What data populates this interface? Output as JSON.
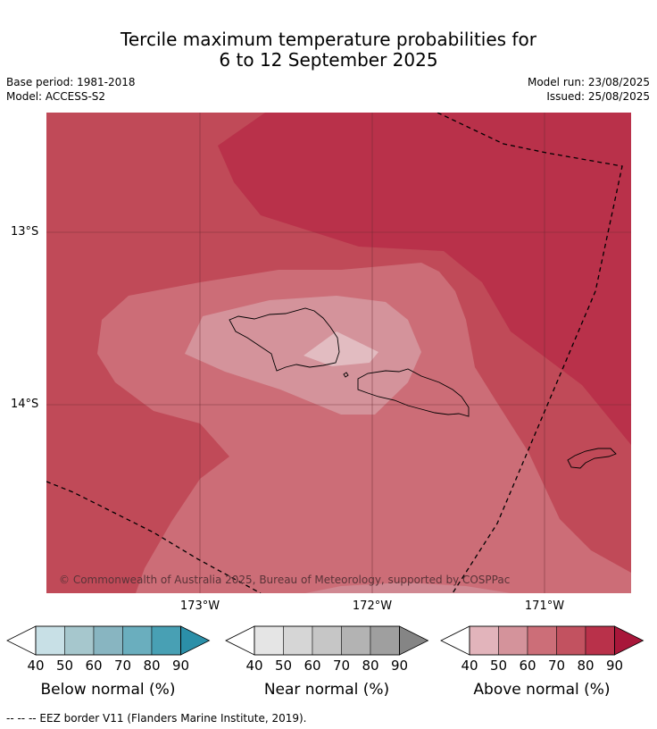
{
  "title": {
    "line1": "Tercile maximum temperature probabilities for",
    "line2": "6 to 12 September 2025"
  },
  "meta": {
    "base_period": "Base period: 1981-2018",
    "model": "Model: ACCESS-S2",
    "model_run": "Model run: 23/08/2025",
    "issued": "Issued: 25/08/2025"
  },
  "map": {
    "lat_labels": [
      "13°S",
      "14°S"
    ],
    "lon_labels": [
      "173°W",
      "172°W",
      "171°W"
    ],
    "copyright": "© Commonwealth of Australia 2025, Bureau of Meteorology, supported by COSPPac"
  },
  "colorbars": {
    "below": {
      "title": "Below normal (%)",
      "ticks": [
        "40",
        "50",
        "60",
        "70",
        "80",
        "90"
      ],
      "colors": [
        "#c8e0e6",
        "#a6c7cd",
        "#88b5c1",
        "#6aaebe",
        "#48a0b4",
        "#2b8fa8"
      ]
    },
    "near": {
      "title": "Near normal (%)",
      "ticks": [
        "40",
        "50",
        "60",
        "70",
        "80",
        "90"
      ],
      "colors": [
        "#e5e5e5",
        "#d6d6d6",
        "#c6c6c6",
        "#b3b3b3",
        "#9f9f9f",
        "#858585"
      ]
    },
    "above": {
      "title": "Above normal (%)",
      "ticks": [
        "40",
        "50",
        "60",
        "70",
        "80",
        "90"
      ],
      "colors": [
        "#e2b4bb",
        "#d4939b",
        "#cc6e78",
        "#c25260",
        "#b9314a",
        "#a8173a"
      ]
    }
  },
  "footnote": "--  --  -- EEZ border V11 (Flanders Marine Institute, 2019)."
}
